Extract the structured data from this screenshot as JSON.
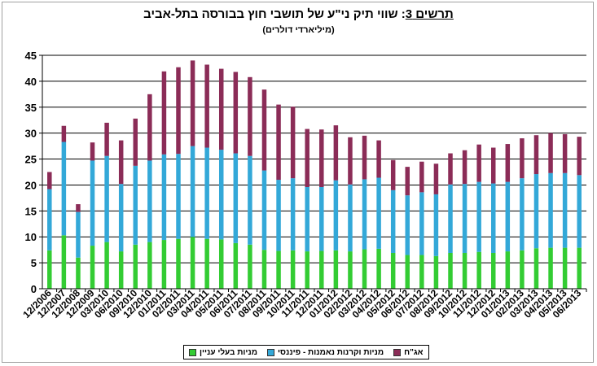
{
  "chart_data": {
    "type": "bar",
    "stacked": true,
    "title_number": "תרשים 3",
    "title_text": " שווי תיק ני\"ע של תושבי חוץ בבורסה בתל-אביב",
    "subtitle": "(מיליארדי דולרים)",
    "ylim": [
      0,
      45
    ],
    "yticks": [
      "0",
      "5",
      "10",
      "15",
      "20",
      "25",
      "30",
      "35",
      "40",
      "45"
    ],
    "grid": true,
    "legend_position": "bottom",
    "categories": [
      "12/2006",
      "12/2007",
      "12/2008",
      "12/2009",
      "03/2010",
      "06/2010",
      "09/2010",
      "12/2010",
      "01/2011",
      "02/2011",
      "03/2011",
      "04/2011",
      "05/2011",
      "06/2011",
      "07/2011",
      "08/2011",
      "09/2011",
      "10/2011",
      "11/2011",
      "12/2011",
      "01/2012",
      "02/2012",
      "03/2012",
      "04/2012",
      "05/2012",
      "06/2012",
      "07/2012",
      "08/2012",
      "09/2012",
      "10/2012",
      "11/2012",
      "12/2012",
      "01/2013",
      "02/2013",
      "03/2013",
      "04/2013",
      "05/2013",
      "06/2013"
    ],
    "series": [
      {
        "name": "מניות בעלי עניין",
        "color": "#33cc33",
        "values": [
          7.4,
          10.3,
          6.0,
          8.3,
          9.0,
          7.2,
          8.5,
          9.0,
          9.4,
          9.6,
          10.0,
          9.6,
          9.5,
          8.8,
          8.5,
          7.5,
          7.3,
          7.4,
          7.2,
          7.3,
          7.4,
          7.2,
          7.6,
          7.7,
          6.9,
          6.5,
          6.5,
          6.3,
          6.9,
          6.9,
          7.1,
          6.9,
          7.2,
          7.4,
          7.8,
          7.9,
          7.9,
          7.9
        ]
      },
      {
        "name": "מניות וקרנות נאמנות - פיננסי",
        "color": "#33a8d8",
        "values": [
          11.8,
          18.0,
          8.8,
          16.4,
          16.6,
          13.0,
          15.2,
          15.7,
          16.5,
          16.4,
          17.5,
          17.6,
          17.3,
          17.3,
          17.1,
          15.3,
          13.7,
          13.9,
          12.4,
          12.3,
          13.5,
          12.9,
          13.5,
          13.7,
          12.1,
          11.5,
          12.1,
          11.9,
          13.2,
          13.3,
          13.5,
          13.4,
          13.4,
          13.9,
          14.3,
          14.4,
          14.4,
          14.0
        ]
      },
      {
        "name": "אג\"ח",
        "color": "#8b2c57",
        "values": [
          3.3,
          3.1,
          1.5,
          3.5,
          6.4,
          8.4,
          9.1,
          12.8,
          16.0,
          16.7,
          16.5,
          16.0,
          15.6,
          15.7,
          15.2,
          15.6,
          14.5,
          13.8,
          11.2,
          11.1,
          10.6,
          9.1,
          8.4,
          7.2,
          5.8,
          5.5,
          5.9,
          5.9,
          6.0,
          6.5,
          7.2,
          6.9,
          7.3,
          7.7,
          7.5,
          7.7,
          7.5,
          7.4
        ]
      }
    ]
  }
}
